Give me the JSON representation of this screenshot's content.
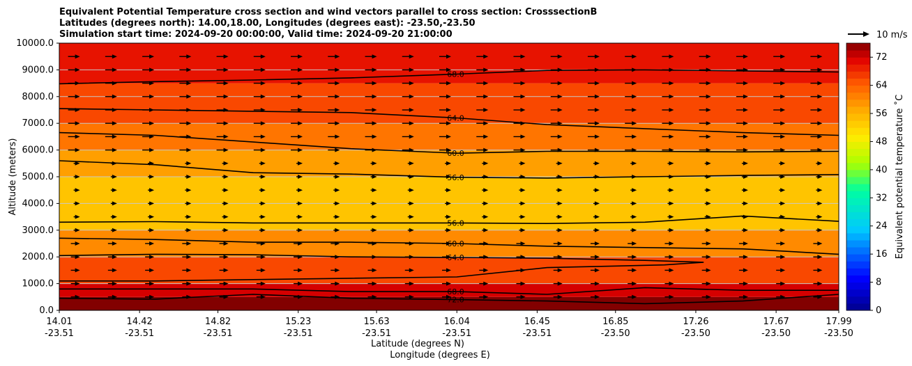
{
  "chart_data": {
    "type": "heatmap",
    "title_lines": [
      "Equivalent Potential Temperature cross section and wind vectors parallel to cross section: CrosssectionB",
      "Latitudes (degrees north): 14.00,18.00, Longitudes (degrees east): -23.50,-23.50",
      "Simulation start time: 2024-09-20 00:00:00, Valid time: 2024-09-20 21:00:00"
    ],
    "xlabel_lat": "Latitude (degrees N)",
    "xlabel_lon": "Longitude (degrees E)",
    "ylabel": "Altitude (meters)",
    "ylim": [
      0,
      10000
    ],
    "xlim": [
      14.01,
      17.99
    ],
    "x_tick_lat": [
      "14.01",
      "14.42",
      "14.82",
      "15.23",
      "15.63",
      "16.04",
      "16.45",
      "16.85",
      "17.26",
      "17.67",
      "17.99"
    ],
    "x_tick_lon": [
      "-23.51",
      "-23.51",
      "-23.51",
      "-23.51",
      "-23.51",
      "-23.51",
      "-23.51",
      "-23.50",
      "-23.50",
      "-23.50",
      "-23.50"
    ],
    "y_ticks": [
      0,
      1000,
      2000,
      3000,
      4000,
      5000,
      6000,
      7000,
      8000,
      9000,
      10000
    ],
    "y_tick_labels": [
      "0.0",
      "1000.0",
      "2000.0",
      "3000.0",
      "4000.0",
      "5000.0",
      "6000.0",
      "7000.0",
      "8000.0",
      "9000.0",
      "10000.0"
    ],
    "colorbar": {
      "label": "Equivalent potential temperature $^\\circ$C",
      "label_display": "Equivalent potential temperature ˚C",
      "min": 0,
      "max": 76,
      "ticks": [
        0,
        8,
        16,
        24,
        32,
        40,
        48,
        56,
        64,
        72
      ],
      "tick_labels": [
        "0",
        "8",
        "16",
        "24",
        "32",
        "40",
        "48",
        "56",
        "64",
        "72"
      ]
    },
    "quiver_key": "10 m/s",
    "contours": [
      {
        "level": 68.0,
        "label": "68.0",
        "points": [
          [
            14.01,
            8480
          ],
          [
            14.5,
            8560
          ],
          [
            15.0,
            8620
          ],
          [
            15.5,
            8700
          ],
          [
            16.04,
            8840
          ],
          [
            16.5,
            8980
          ],
          [
            17.0,
            9000
          ],
          [
            17.5,
            8960
          ],
          [
            17.99,
            8920
          ]
        ]
      },
      {
        "level": 64.0,
        "label": "64.0",
        "points": [
          [
            14.01,
            7550
          ],
          [
            14.5,
            7500
          ],
          [
            15.0,
            7450
          ],
          [
            15.5,
            7400
          ],
          [
            16.04,
            7200
          ],
          [
            16.5,
            6950
          ],
          [
            17.0,
            6800
          ],
          [
            17.5,
            6650
          ],
          [
            17.99,
            6550
          ]
        ]
      },
      {
        "level": 60.0,
        "label": "60.0",
        "points": [
          [
            14.01,
            6650
          ],
          [
            14.5,
            6550
          ],
          [
            15.0,
            6300
          ],
          [
            15.5,
            6050
          ],
          [
            16.04,
            5880
          ],
          [
            16.5,
            5950
          ],
          [
            17.0,
            5950
          ],
          [
            17.5,
            5930
          ],
          [
            17.99,
            5950
          ]
        ]
      },
      {
        "level": 56.0,
        "label": "56.0",
        "points": [
          [
            14.01,
            5600
          ],
          [
            14.5,
            5450
          ],
          [
            15.0,
            5150
          ],
          [
            15.5,
            5100
          ],
          [
            16.04,
            4980
          ],
          [
            16.5,
            4950
          ],
          [
            17.0,
            5000
          ],
          [
            17.5,
            5050
          ],
          [
            17.99,
            5080
          ]
        ]
      },
      {
        "level": 56.0,
        "label": "56.0",
        "points": [
          [
            14.01,
            3300
          ],
          [
            14.5,
            3320
          ],
          [
            15.0,
            3270
          ],
          [
            15.5,
            3270
          ],
          [
            16.04,
            3270
          ],
          [
            16.5,
            3250
          ],
          [
            17.0,
            3300
          ],
          [
            17.5,
            3530
          ],
          [
            17.99,
            3330
          ]
        ]
      },
      {
        "level": 60.0,
        "label": "60.0",
        "points": [
          [
            14.01,
            2700
          ],
          [
            14.5,
            2650
          ],
          [
            15.0,
            2550
          ],
          [
            15.5,
            2550
          ],
          [
            16.04,
            2500
          ],
          [
            16.5,
            2400
          ],
          [
            17.0,
            2350
          ],
          [
            17.5,
            2300
          ],
          [
            17.99,
            2100
          ]
        ]
      },
      {
        "level": 64.0,
        "label": "64.0",
        "points": [
          [
            14.01,
            2050
          ],
          [
            14.5,
            2100
          ],
          [
            15.0,
            2080
          ],
          [
            15.5,
            2000
          ],
          [
            16.04,
            1980
          ],
          [
            16.5,
            1950
          ],
          [
            17.0,
            1870
          ],
          [
            17.3,
            1800
          ],
          [
            17.1,
            1700
          ],
          [
            16.5,
            1600
          ],
          [
            16.04,
            1250
          ],
          [
            15.5,
            1200
          ],
          [
            15.0,
            1150
          ],
          [
            14.5,
            1100
          ],
          [
            14.01,
            1100
          ]
        ]
      },
      {
        "level": 68.0,
        "label": "68.0",
        "points": [
          [
            14.01,
            800
          ],
          [
            14.5,
            800
          ],
          [
            15.0,
            800
          ],
          [
            15.5,
            700
          ],
          [
            16.04,
            700
          ],
          [
            16.5,
            600
          ],
          [
            17.0,
            850
          ],
          [
            17.5,
            750
          ],
          [
            17.99,
            750
          ]
        ]
      },
      {
        "level": 72.0,
        "label": "72.0",
        "points": [
          [
            14.01,
            450
          ],
          [
            14.5,
            420
          ],
          [
            15.0,
            600
          ],
          [
            15.5,
            450
          ],
          [
            16.04,
            400
          ],
          [
            16.5,
            350
          ],
          [
            17.0,
            250
          ],
          [
            17.5,
            350
          ],
          [
            17.99,
            600
          ]
        ]
      }
    ],
    "field_description_bands": [
      {
        "altitude": [
          0,
          500
        ],
        "value": 76
      },
      {
        "altitude": [
          500,
          1000
        ],
        "value": 72
      },
      {
        "altitude": [
          1000,
          2000
        ],
        "value": 66
      },
      {
        "altitude": [
          2000,
          3000
        ],
        "value": 60
      },
      {
        "altitude": [
          3000,
          5000
        ],
        "value": 54
      },
      {
        "altitude": [
          5000,
          6000
        ],
        "value": 58
      },
      {
        "altitude": [
          6000,
          7000
        ],
        "value": 62
      },
      {
        "altitude": [
          7000,
          8500
        ],
        "value": 66
      },
      {
        "altitude": [
          8500,
          10000
        ],
        "value": 70
      }
    ]
  }
}
